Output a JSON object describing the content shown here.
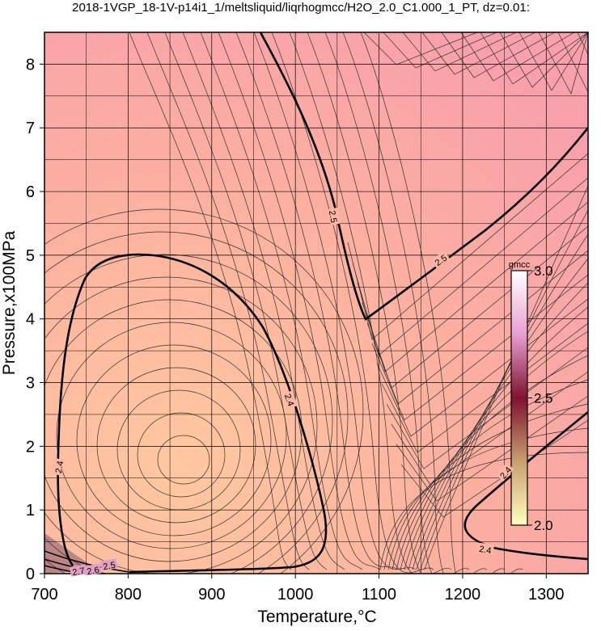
{
  "chart_data": {
    "type": "contour",
    "title": "2018-1VGP_18-1V-p14i1_1/meltsliquid/liqrhogmcc/H2O_2.0_C1.000_1_PT, dz=0.01:",
    "x_label": "Temperature,°C",
    "y_label": "Pressure,x100MPa",
    "xlim": [
      700,
      1350
    ],
    "ylim": [
      0,
      8.5
    ],
    "xticks": [
      700,
      800,
      900,
      1000,
      1100,
      1200,
      1300
    ],
    "yticks": [
      0,
      1,
      2,
      3,
      4,
      5,
      6,
      7,
      8
    ],
    "grid": true,
    "colorbar": {
      "label": "gmcc",
      "lim": [
        2.0,
        3.0
      ],
      "ticks": [
        {
          "value": 2.0,
          "label": "2.0"
        },
        {
          "value": 2.5,
          "label": "2.5"
        },
        {
          "value": 3.0,
          "label": "3.0"
        }
      ],
      "colors": [
        "#ffffc0",
        "#c8a070",
        "#801030",
        "#e8a0d0",
        "#ffffff"
      ]
    },
    "contour_labels": [
      2.4,
      2.4,
      2.5,
      2.5,
      2.4,
      2.4,
      2.5,
      2.6,
      2.7
    ]
  }
}
